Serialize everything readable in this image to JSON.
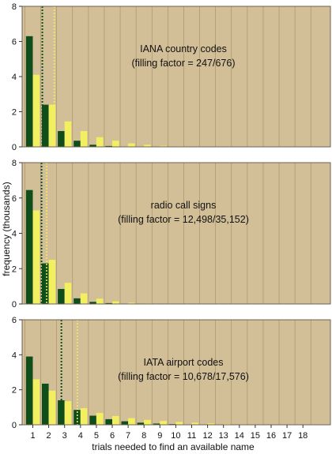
{
  "chart_data": {
    "type": "bar",
    "ylabel": "frequency (thousands)",
    "xlabel": "trials needed to find an available name",
    "x_categories": [
      "1",
      "2",
      "3",
      "4",
      "5",
      "6",
      "7",
      "8",
      "9",
      "10",
      "11",
      "12",
      "13",
      "14",
      "15",
      "16",
      "17",
      "18"
    ],
    "series_colors": [
      "#0f4d1a",
      "#f2f060"
    ],
    "panel_background": "#d2bf98",
    "grid": true,
    "panels": [
      {
        "title_line1": "IANA country codes",
        "title_line2": "(filling factor = 247/676)",
        "ylim": [
          0,
          8
        ],
        "yticks": [
          "0",
          "2",
          "4",
          "6",
          "8"
        ],
        "dark": [
          6.3,
          2.4,
          0.9,
          0.35,
          0.12,
          0.05,
          0.02,
          0,
          0,
          0,
          0,
          0,
          0,
          0,
          0,
          0,
          0,
          0
        ],
        "light": [
          4.1,
          2.4,
          1.45,
          0.9,
          0.55,
          0.35,
          0.2,
          0.12,
          0.06,
          0.03,
          0.01,
          0,
          0,
          0,
          0,
          0,
          0,
          0
        ],
        "dark_vline": 1.6,
        "light_vline": 2.35
      },
      {
        "title_line1": "radio call signs",
        "title_line2": "(filling factor = 12,498/35,152)",
        "ylim": [
          0,
          8
        ],
        "yticks": [
          "0",
          "2",
          "4",
          "6",
          "8"
        ],
        "dark": [
          6.45,
          2.3,
          0.85,
          0.32,
          0.12,
          0.05,
          0.02,
          0,
          0,
          0,
          0,
          0,
          0,
          0,
          0,
          0,
          0,
          0
        ],
        "light": [
          5.3,
          2.5,
          1.2,
          0.6,
          0.3,
          0.15,
          0.07,
          0.03,
          0.01,
          0,
          0,
          0,
          0,
          0,
          0,
          0,
          0,
          0
        ],
        "dark_vline": 1.55,
        "light_vline": 1.87
      },
      {
        "title_line1": "IATA airport codes",
        "title_line2": "(filling factor = 10,678/17,576)",
        "ylim": [
          0,
          6
        ],
        "yticks": [
          "0",
          "2",
          "4",
          "6"
        ],
        "dark": [
          3.9,
          2.35,
          1.4,
          0.85,
          0.52,
          0.32,
          0.2,
          0.12,
          0.07,
          0.04,
          0.02,
          0.01,
          0,
          0,
          0,
          0,
          0,
          0
        ],
        "light": [
          2.6,
          1.95,
          1.35,
          0.95,
          0.68,
          0.5,
          0.38,
          0.28,
          0.22,
          0.16,
          0.12,
          0.08,
          0.05,
          0.03,
          0.02,
          0.01,
          0.01,
          0
        ],
        "dark_vline": 2.8,
        "light_vline": 3.8
      }
    ]
  }
}
